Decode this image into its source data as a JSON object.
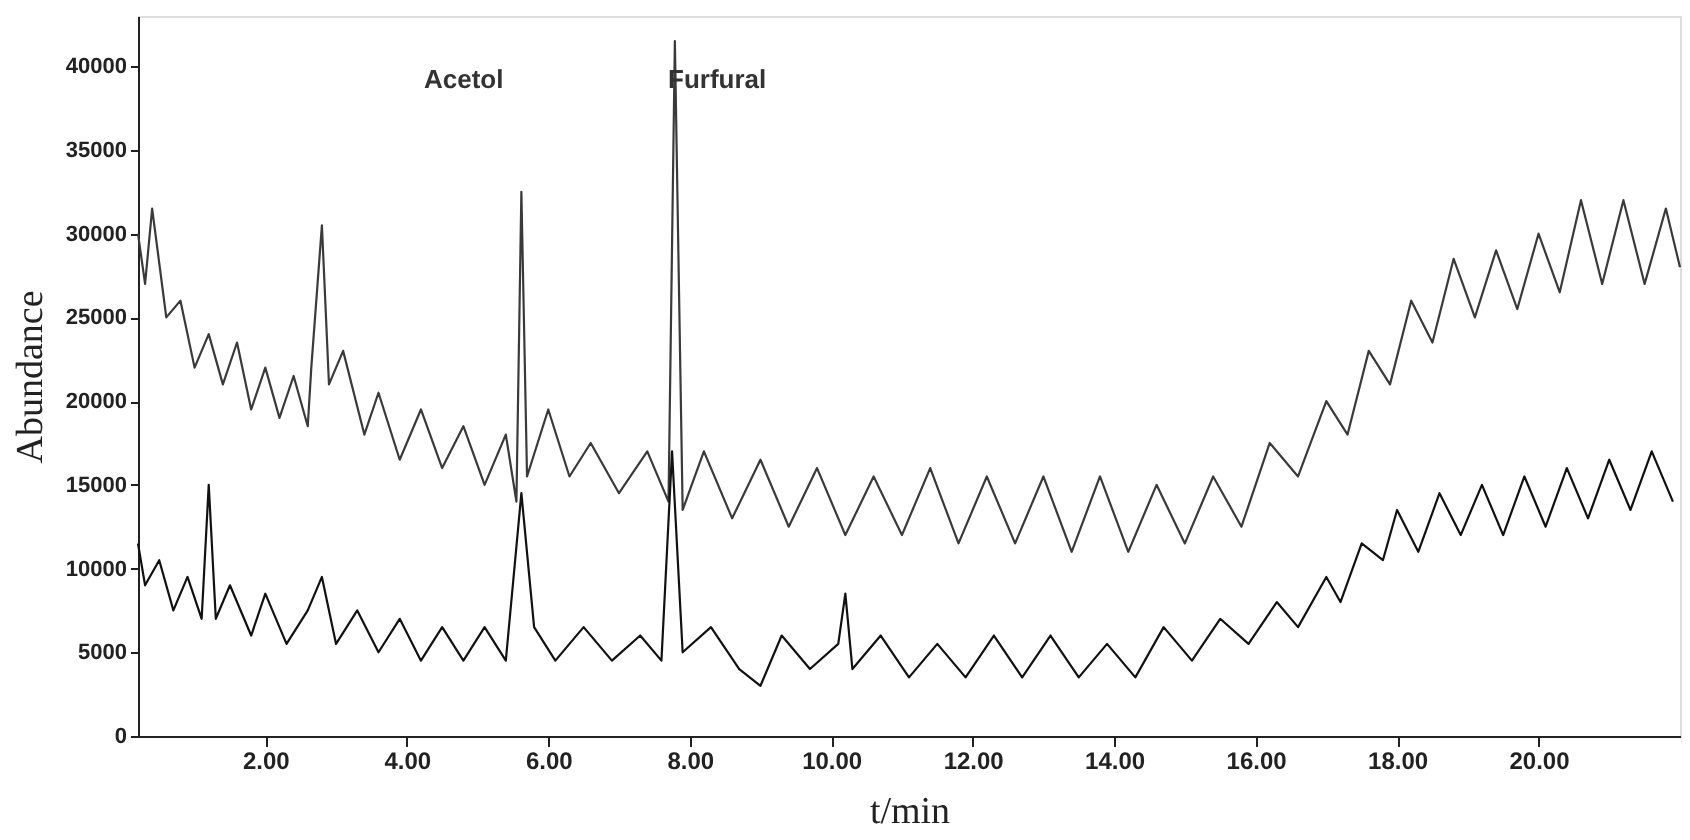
{
  "chart_data": {
    "type": "line",
    "xlabel": "t/min",
    "ylabel": "Abundance",
    "xlim": [
      0.2,
      22.0
    ],
    "ylim": [
      0,
      43000
    ],
    "xticks": [
      {
        "value": 2,
        "label": "2.00"
      },
      {
        "value": 4,
        "label": "4.00"
      },
      {
        "value": 6,
        "label": "6.00"
      },
      {
        "value": 8,
        "label": "8.00"
      },
      {
        "value": 10,
        "label": "10.00"
      },
      {
        "value": 12,
        "label": "12.00"
      },
      {
        "value": 14,
        "label": "14.00"
      },
      {
        "value": 16,
        "label": "16.00"
      },
      {
        "value": 18,
        "label": "18.00"
      },
      {
        "value": 20,
        "label": "20.00"
      }
    ],
    "yticks": [
      0,
      5000,
      10000,
      15000,
      20000,
      25000,
      30000,
      35000,
      40000
    ],
    "grid": false,
    "marker": "none",
    "line_style": "solid",
    "annotations": [
      "Acetol",
      "Furfural"
    ],
    "series": [
      {
        "color": "#3a3a3a",
        "x": [
          0.2,
          0.3,
          0.4,
          0.6,
          0.8,
          1.0,
          1.2,
          1.4,
          1.6,
          1.8,
          2.0,
          2.2,
          2.4,
          2.6,
          2.65,
          2.8,
          2.9,
          3.1,
          3.4,
          3.6,
          3.9,
          4.2,
          4.5,
          4.8,
          5.1,
          5.4,
          5.55,
          5.62,
          5.7,
          6.0,
          6.3,
          6.6,
          7.0,
          7.4,
          7.7,
          7.79,
          7.9,
          8.2,
          8.6,
          9.0,
          9.4,
          9.8,
          10.2,
          10.6,
          11.0,
          11.4,
          11.8,
          12.2,
          12.6,
          13.0,
          13.4,
          13.8,
          14.2,
          14.6,
          15.0,
          15.4,
          15.8,
          16.2,
          16.6,
          17.0,
          17.3,
          17.6,
          17.9,
          18.2,
          18.5,
          18.8,
          19.1,
          19.4,
          19.7,
          20.0,
          20.3,
          20.6,
          20.9,
          21.2,
          21.5,
          21.8,
          22.0
        ],
        "values": [
          30000,
          27000,
          31500,
          25000,
          26000,
          22000,
          24000,
          21000,
          23500,
          19500,
          22000,
          19000,
          21500,
          18500,
          22000,
          30500,
          21000,
          23000,
          18000,
          20500,
          16500,
          19500,
          16000,
          18500,
          15000,
          18000,
          14000,
          32500,
          15500,
          19500,
          15500,
          17500,
          14500,
          17000,
          14000,
          41500,
          13500,
          17000,
          13000,
          16500,
          12500,
          16000,
          12000,
          15500,
          12000,
          16000,
          11500,
          15500,
          11500,
          15500,
          11000,
          15500,
          11000,
          15000,
          11500,
          15500,
          12500,
          17500,
          15500,
          20000,
          18000,
          23000,
          21000,
          26000,
          23500,
          28500,
          25000,
          29000,
          25500,
          30000,
          26500,
          32000,
          27000,
          32000,
          27000,
          31500,
          28000
        ]
      },
      {
        "color": "#111111",
        "x": [
          0.2,
          0.3,
          0.5,
          0.7,
          0.9,
          1.1,
          1.2,
          1.3,
          1.5,
          1.8,
          2.0,
          2.3,
          2.6,
          2.8,
          3.0,
          3.3,
          3.6,
          3.9,
          4.2,
          4.5,
          4.8,
          5.1,
          5.4,
          5.62,
          5.8,
          6.1,
          6.5,
          6.9,
          7.3,
          7.6,
          7.75,
          7.9,
          8.3,
          8.7,
          9.0,
          9.3,
          9.7,
          10.1,
          10.2,
          10.3,
          10.7,
          11.1,
          11.5,
          11.9,
          12.3,
          12.7,
          13.1,
          13.5,
          13.9,
          14.3,
          14.7,
          15.1,
          15.5,
          15.9,
          16.3,
          16.6,
          17.0,
          17.2,
          17.5,
          17.8,
          18.0,
          18.3,
          18.6,
          18.9,
          19.2,
          19.5,
          19.8,
          20.1,
          20.4,
          20.7,
          21.0,
          21.3,
          21.6,
          21.9
        ],
        "values": [
          11500,
          9000,
          10500,
          7500,
          9500,
          7000,
          15000,
          7000,
          9000,
          6000,
          8500,
          5500,
          7500,
          9500,
          5500,
          7500,
          5000,
          7000,
          4500,
          6500,
          4500,
          6500,
          4500,
          14500,
          6500,
          4500,
          6500,
          4500,
          6000,
          4500,
          17000,
          5000,
          6500,
          4000,
          3000,
          6000,
          4000,
          5500,
          8500,
          4000,
          6000,
          3500,
          5500,
          3500,
          6000,
          3500,
          6000,
          3500,
          5500,
          3500,
          6500,
          4500,
          7000,
          5500,
          8000,
          6500,
          9500,
          8000,
          11500,
          10500,
          13500,
          11000,
          14500,
          12000,
          15000,
          12000,
          15500,
          12500,
          16000,
          13000,
          16500,
          13500,
          17000,
          14000
        ]
      }
    ]
  }
}
